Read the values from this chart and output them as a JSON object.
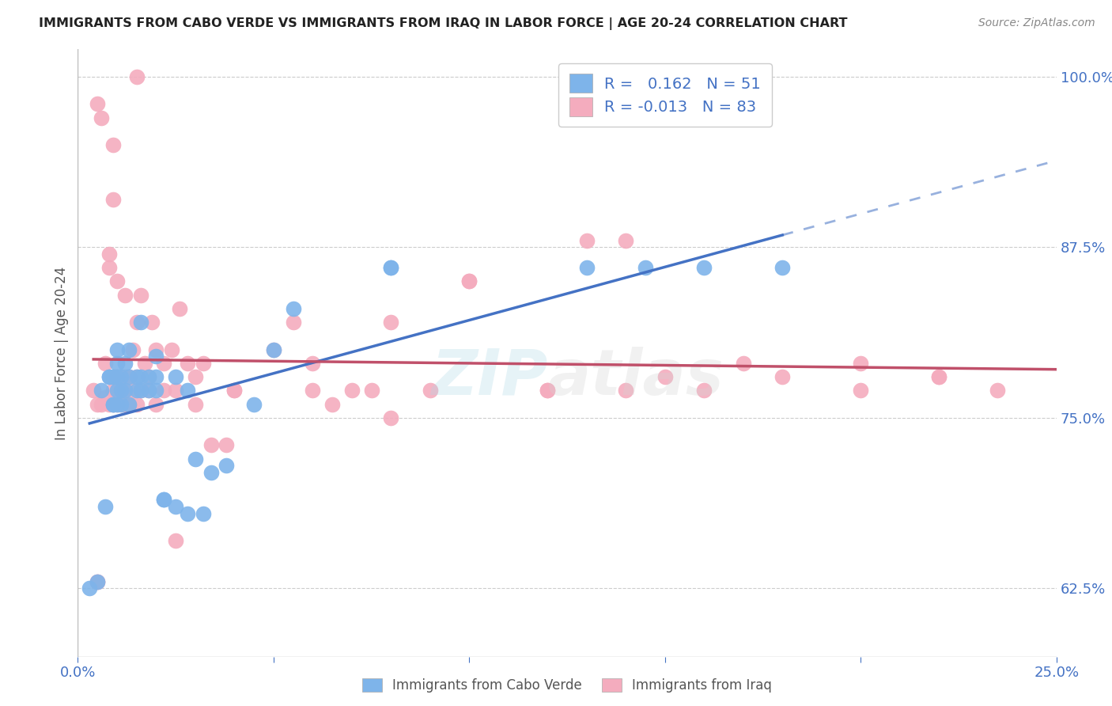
{
  "title": "IMMIGRANTS FROM CABO VERDE VS IMMIGRANTS FROM IRAQ IN LABOR FORCE | AGE 20-24 CORRELATION CHART",
  "source": "Source: ZipAtlas.com",
  "ylabel": "In Labor Force | Age 20-24",
  "xlim": [
    0.0,
    0.25
  ],
  "ylim": [
    0.575,
    1.02
  ],
  "ytick_positions": [
    0.625,
    0.75,
    0.875,
    1.0
  ],
  "ytick_labels": [
    "62.5%",
    "75.0%",
    "87.5%",
    "100.0%"
  ],
  "cabo_verde_color": "#7EB4EA",
  "iraq_color": "#F4ACBE",
  "cabo_verde_line_color": "#4472C4",
  "iraq_line_color": "#C0506A",
  "cabo_verde_R": 0.162,
  "cabo_verde_N": 51,
  "iraq_R": -0.013,
  "iraq_N": 83,
  "legend_label_cabo": "Immigrants from Cabo Verde",
  "legend_label_iraq": "Immigrants from Iraq",
  "cabo_verde_x": [
    0.003,
    0.005,
    0.006,
    0.007,
    0.008,
    0.008,
    0.009,
    0.009,
    0.009,
    0.01,
    0.01,
    0.01,
    0.01,
    0.01,
    0.011,
    0.011,
    0.011,
    0.012,
    0.012,
    0.013,
    0.013,
    0.013,
    0.015,
    0.015,
    0.016,
    0.016,
    0.016,
    0.018,
    0.018,
    0.02,
    0.02,
    0.02,
    0.022,
    0.022,
    0.025,
    0.025,
    0.028,
    0.028,
    0.03,
    0.032,
    0.034,
    0.038,
    0.045,
    0.05,
    0.055,
    0.08,
    0.08,
    0.13,
    0.145,
    0.16,
    0.18
  ],
  "cabo_verde_y": [
    0.625,
    0.63,
    0.77,
    0.685,
    0.78,
    0.78,
    0.76,
    0.78,
    0.76,
    0.76,
    0.77,
    0.78,
    0.79,
    0.8,
    0.76,
    0.77,
    0.78,
    0.77,
    0.79,
    0.76,
    0.78,
    0.8,
    0.77,
    0.78,
    0.77,
    0.78,
    0.82,
    0.77,
    0.78,
    0.77,
    0.78,
    0.795,
    0.69,
    0.69,
    0.78,
    0.685,
    0.68,
    0.77,
    0.72,
    0.68,
    0.71,
    0.715,
    0.76,
    0.8,
    0.83,
    0.86,
    0.86,
    0.86,
    0.86,
    0.86,
    0.86
  ],
  "iraq_x": [
    0.004,
    0.005,
    0.005,
    0.006,
    0.006,
    0.007,
    0.007,
    0.008,
    0.008,
    0.008,
    0.009,
    0.009,
    0.009,
    0.009,
    0.01,
    0.01,
    0.01,
    0.01,
    0.011,
    0.011,
    0.012,
    0.012,
    0.012,
    0.013,
    0.013,
    0.014,
    0.014,
    0.015,
    0.015,
    0.015,
    0.016,
    0.016,
    0.017,
    0.018,
    0.018,
    0.019,
    0.02,
    0.02,
    0.022,
    0.022,
    0.024,
    0.025,
    0.026,
    0.028,
    0.03,
    0.032,
    0.034,
    0.038,
    0.04,
    0.05,
    0.055,
    0.06,
    0.065,
    0.07,
    0.075,
    0.08,
    0.09,
    0.1,
    0.12,
    0.13,
    0.14,
    0.15,
    0.16,
    0.17,
    0.18,
    0.2,
    0.22,
    0.235,
    0.005,
    0.005,
    0.009,
    0.012,
    0.015,
    0.025,
    0.1,
    0.14,
    0.03,
    0.04,
    0.06,
    0.08,
    0.12,
    0.2,
    0.22
  ],
  "iraq_y": [
    0.77,
    0.76,
    0.98,
    0.76,
    0.97,
    0.765,
    0.79,
    0.76,
    0.86,
    0.87,
    0.76,
    0.77,
    0.78,
    0.95,
    0.76,
    0.77,
    0.78,
    0.85,
    0.76,
    0.77,
    0.76,
    0.78,
    0.84,
    0.76,
    0.78,
    0.77,
    0.8,
    0.76,
    0.78,
    0.82,
    0.77,
    0.84,
    0.79,
    0.77,
    0.78,
    0.82,
    0.76,
    0.8,
    0.77,
    0.79,
    0.8,
    0.77,
    0.83,
    0.79,
    0.76,
    0.79,
    0.73,
    0.73,
    0.77,
    0.8,
    0.82,
    0.77,
    0.76,
    0.77,
    0.77,
    0.82,
    0.77,
    0.85,
    0.77,
    0.88,
    0.77,
    0.78,
    0.77,
    0.79,
    0.78,
    0.77,
    0.78,
    0.77,
    0.63,
    0.63,
    0.91,
    0.77,
    1.0,
    0.66,
    0.85,
    0.88,
    0.78,
    0.77,
    0.79,
    0.75,
    0.77,
    0.79,
    0.78
  ]
}
